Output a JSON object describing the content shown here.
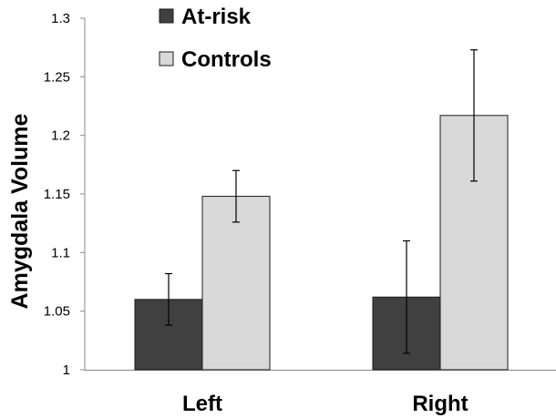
{
  "chart_data": {
    "type": "bar",
    "title": "",
    "xlabel": "",
    "ylabel": "Amygdala Volume",
    "ylim": [
      1,
      1.3
    ],
    "yticks": [
      "1",
      "1.05",
      "1.1",
      "1.15",
      "1.2",
      "1.25",
      "1.3"
    ],
    "categories": [
      "Left",
      "Right"
    ],
    "series": [
      {
        "name": "At-risk",
        "color": "#404040",
        "values": [
          1.06,
          1.062
        ],
        "error": [
          0.022,
          0.048
        ]
      },
      {
        "name": "Controls",
        "color": "#d9d9d9",
        "values": [
          1.148,
          1.217
        ],
        "error": [
          0.022,
          0.056
        ]
      }
    ],
    "legend_position": "top-left",
    "grid": false
  }
}
